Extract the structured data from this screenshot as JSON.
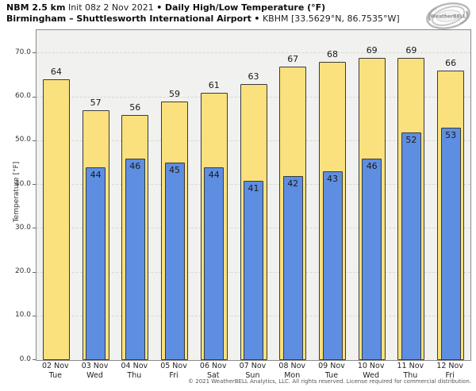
{
  "header": {
    "line1": {
      "model": "NBM 2.5 km",
      "init": "Init 08z 2 Nov 2021",
      "sep": "•",
      "product": "Daily High/Low Temperature (°F)"
    },
    "line2": {
      "station": "Birmingham – Shuttlesworth International Airport",
      "sep": "•",
      "code": "KBHM [33.5629°N, 86.7535°W]"
    },
    "logo_text": "WeatherBELL"
  },
  "chart_data": {
    "type": "bar",
    "title": "NBM 2.5 km Daily High/Low Temperature (°F) — Birmingham – Shuttlesworth International Airport (KBHM)",
    "xlabel": "",
    "ylabel": "Temperature [°F]",
    "ylim": [
      0,
      75.3
    ],
    "yticks": [
      0,
      10,
      20,
      30,
      40,
      50,
      60,
      70
    ],
    "ytick_labels": [
      "0.0",
      "10.0",
      "20.0",
      "30.0",
      "40.0",
      "50.0",
      "60.0",
      "70.0"
    ],
    "grid": "horizontal-dashed",
    "legend": "none",
    "categories": [
      {
        "date": "02 Nov",
        "day": "Tue"
      },
      {
        "date": "03 Nov",
        "day": "Wed"
      },
      {
        "date": "04 Nov",
        "day": "Thu"
      },
      {
        "date": "05 Nov",
        "day": "Fri"
      },
      {
        "date": "06 Nov",
        "day": "Sat"
      },
      {
        "date": "07 Nov",
        "day": "Sun"
      },
      {
        "date": "08 Nov",
        "day": "Mon"
      },
      {
        "date": "09 Nov",
        "day": "Tue"
      },
      {
        "date": "10 Nov",
        "day": "Wed"
      },
      {
        "date": "11 Nov",
        "day": "Thu"
      },
      {
        "date": "12 Nov",
        "day": "Fri"
      }
    ],
    "series": [
      {
        "name": "Daily High",
        "color": "#fae17d",
        "values": [
          64,
          57,
          56,
          59,
          61,
          63,
          67,
          68,
          69,
          69,
          66
        ]
      },
      {
        "name": "Daily Low",
        "color": "#5e8ee1",
        "values": [
          null,
          44,
          46,
          45,
          44,
          41,
          42,
          43,
          46,
          52,
          53
        ]
      }
    ],
    "colors": {
      "plot_background": "#f1f1ef",
      "grid": "#d7d7d3",
      "bar_border": "#3a3a3a",
      "high_fill": "#fae17d",
      "low_fill": "#5e8ee1"
    }
  },
  "footer": {
    "copyright": "© 2021 WeatherBELL Analytics, LLC. All rights reserved. License required for commercial distribution."
  }
}
